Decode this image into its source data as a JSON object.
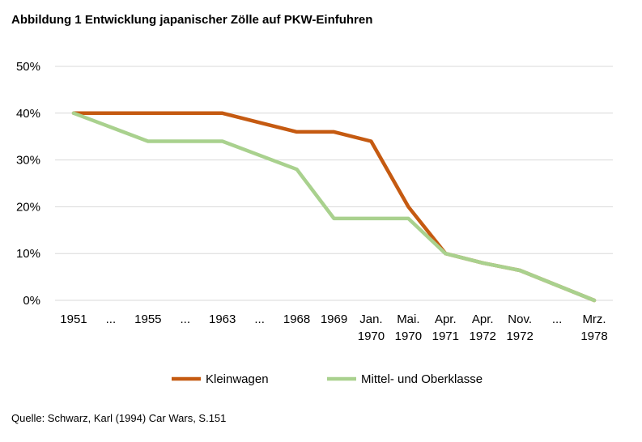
{
  "title": "Abbildung 1 Entwicklung japanischer Zölle auf PKW-Einfuhren",
  "source": "Quelle: Schwarz, Karl (1994) Car Wars, S.151",
  "chart_data": {
    "type": "line",
    "title": "Abbildung 1 Entwicklung japanischer Zölle auf PKW-Einfuhren",
    "xlabel": "",
    "ylabel": "",
    "categories": [
      [
        "1951"
      ],
      [
        "..."
      ],
      [
        "1955"
      ],
      [
        "..."
      ],
      [
        "1963"
      ],
      [
        "..."
      ],
      [
        "1968"
      ],
      [
        "1969"
      ],
      [
        "Jan.",
        "1970"
      ],
      [
        "Mai.",
        "1970"
      ],
      [
        "Apr.",
        "1971"
      ],
      [
        "Apr.",
        "1972"
      ],
      [
        "Nov.",
        "1972"
      ],
      [
        "..."
      ],
      [
        "Mrz.",
        "1978"
      ]
    ],
    "yticks": [
      "0%",
      "10%",
      "20%",
      "30%",
      "40%",
      "50%"
    ],
    "ylim": [
      0,
      50
    ],
    "grid": true,
    "legend_position": "bottom",
    "series": [
      {
        "name": "Kleinwagen",
        "color": "#C55A11",
        "values": [
          40,
          40,
          40,
          40,
          40,
          38,
          36,
          36,
          34,
          20,
          10,
          8,
          6.4,
          3.2,
          0
        ]
      },
      {
        "name": "Mittel- und Oberklasse",
        "color": "#A9D18E",
        "values": [
          40,
          37,
          34,
          34,
          34,
          31,
          28,
          17.5,
          17.5,
          17.5,
          10,
          8,
          6.4,
          3.2,
          0
        ]
      }
    ]
  }
}
